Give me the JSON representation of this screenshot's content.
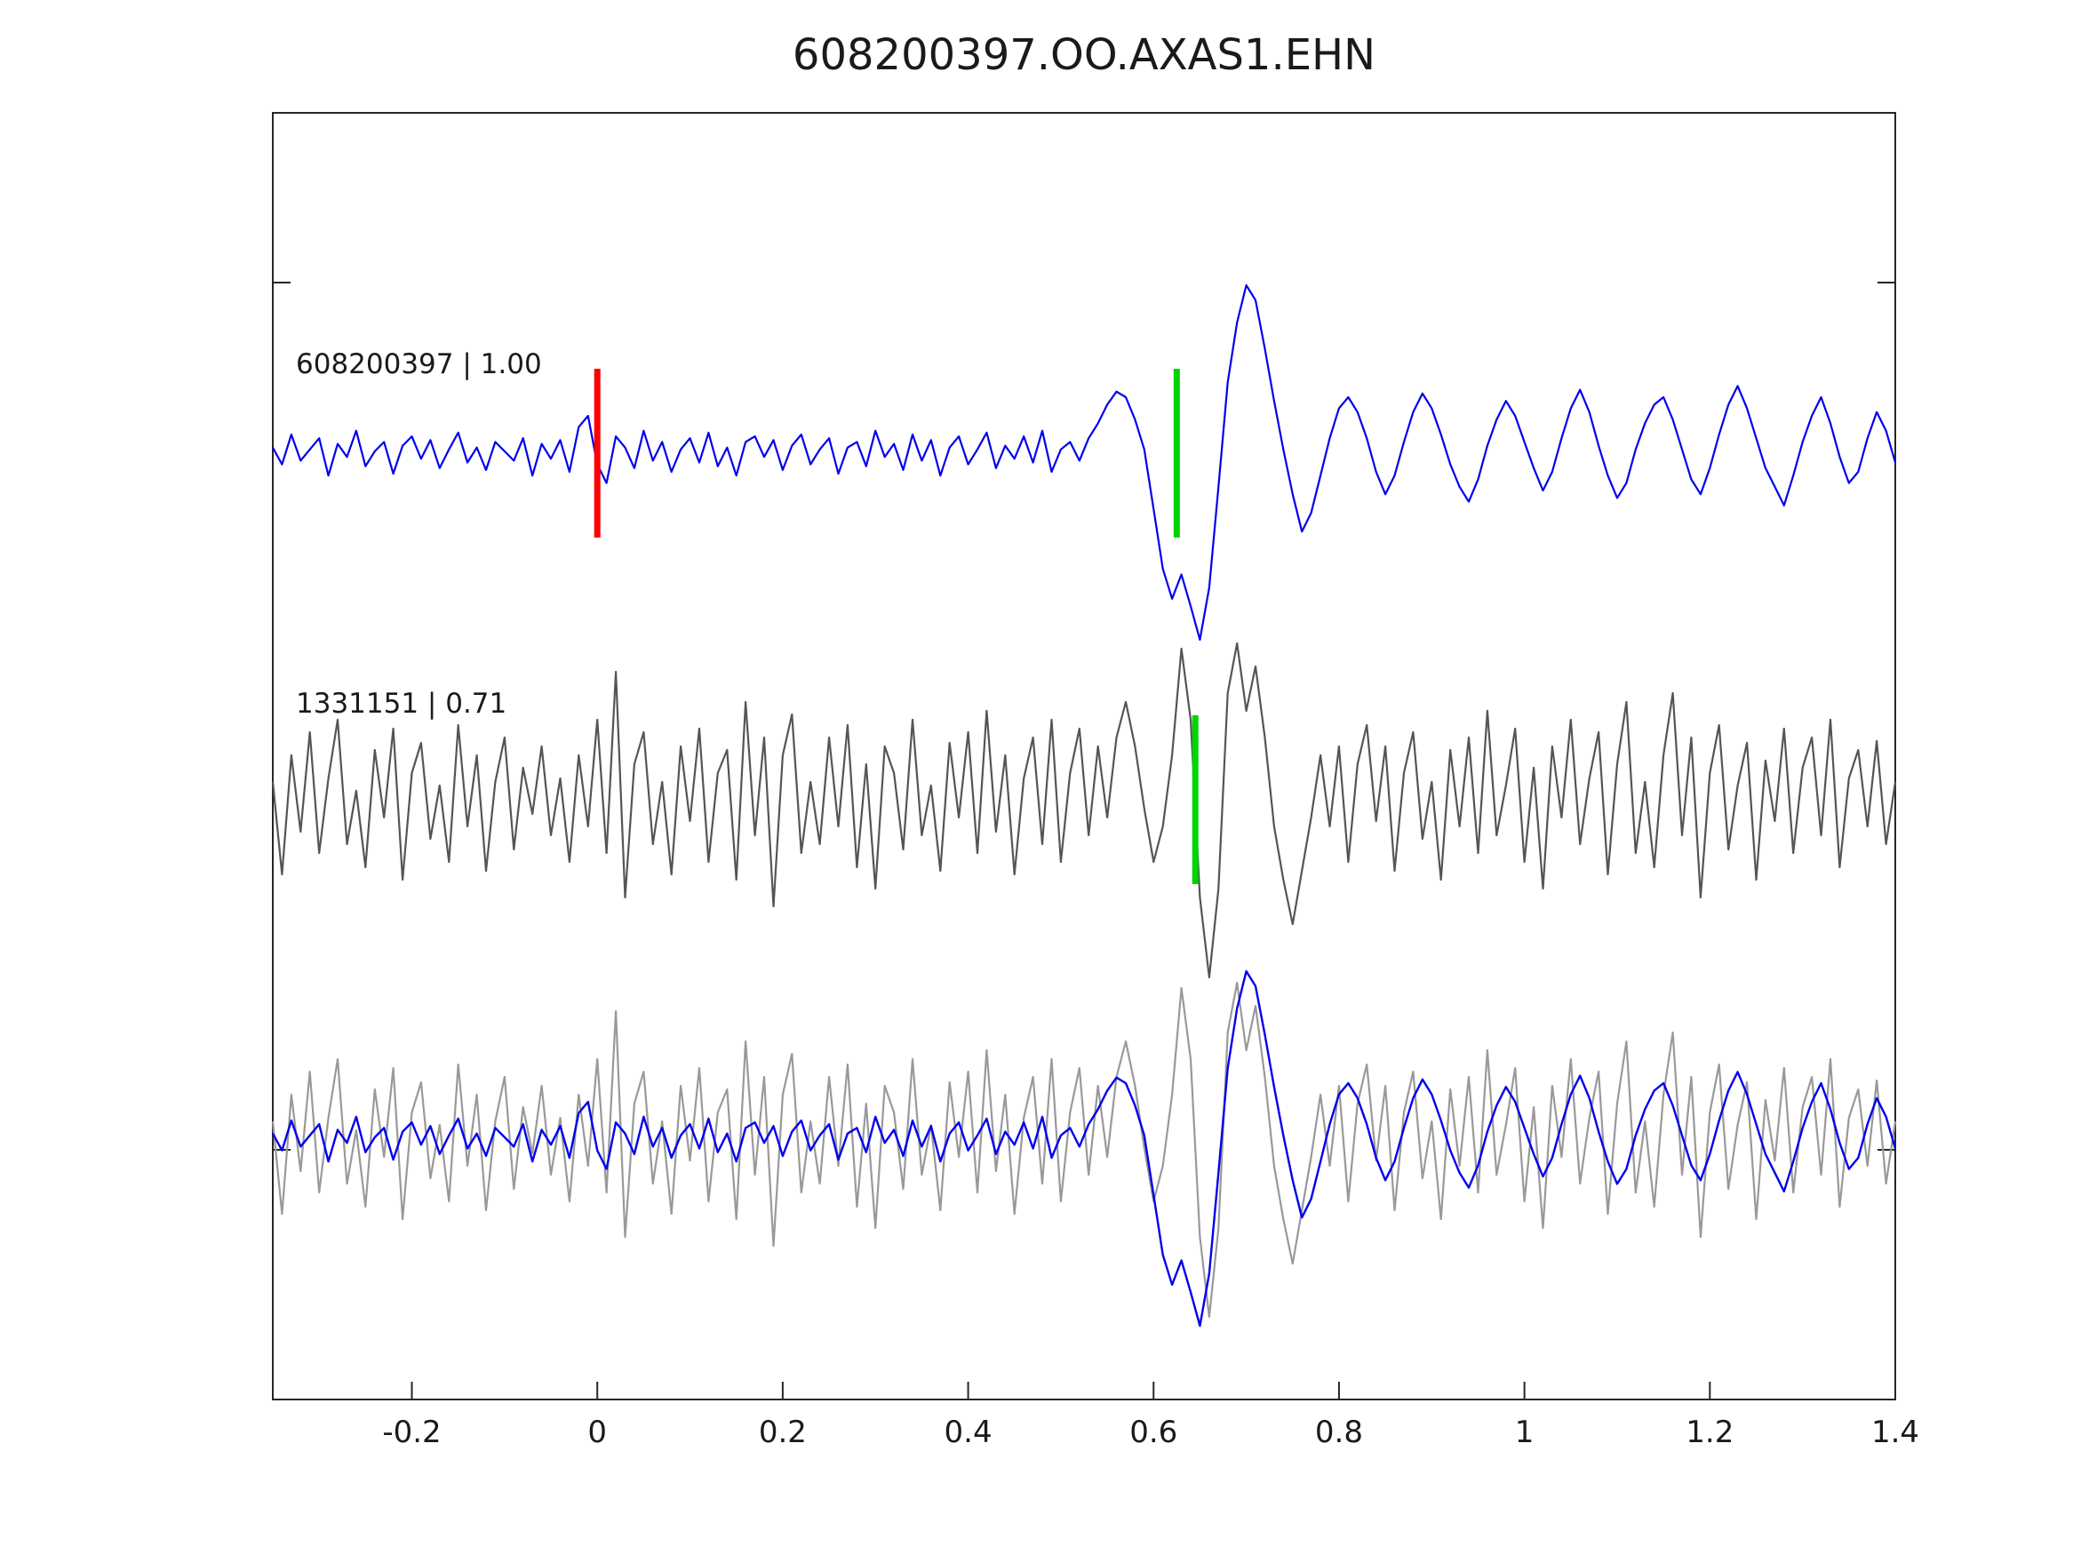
{
  "chart_data": {
    "type": "line",
    "title": "608200397.OO.AXAS1.EHN",
    "xlabel": "",
    "ylabel": "",
    "xlim": [
      -0.35,
      1.4
    ],
    "x_ticks": [
      -0.2,
      0,
      0.2,
      0.4,
      0.6,
      0.8,
      1,
      1.2,
      1.4
    ],
    "x_tick_labels": [
      "-0.2",
      "0",
      "0.2",
      "0.4",
      "0.6",
      "0.8",
      "1",
      "1.2",
      "1.4"
    ],
    "grid": false,
    "legend": "none",
    "x_start": -0.35,
    "dx": 0.01,
    "traces": [
      {
        "name": "reference",
        "label": "608200397 | 1.00",
        "id": "608200397",
        "correlation": "1.00",
        "color": "#0000ee",
        "values": [
          0.03,
          -0.06,
          0.1,
          -0.04,
          0.02,
          0.08,
          -0.12,
          0.05,
          -0.02,
          0.12,
          -0.07,
          0.01,
          0.06,
          -0.11,
          0.04,
          0.09,
          -0.03,
          0.07,
          -0.08,
          0.02,
          0.11,
          -0.05,
          0.03,
          -0.09,
          0.06,
          0.01,
          -0.04,
          0.08,
          -0.12,
          0.05,
          -0.03,
          0.07,
          -0.1,
          0.14,
          0.2,
          -0.06,
          -0.16,
          0.09,
          0.03,
          -0.08,
          0.12,
          -0.04,
          0.06,
          -0.1,
          0.02,
          0.08,
          -0.05,
          0.11,
          -0.07,
          0.03,
          -0.12,
          0.06,
          0.09,
          -0.02,
          0.07,
          -0.09,
          0.04,
          0.1,
          -0.06,
          0.02,
          0.08,
          -0.11,
          0.03,
          0.06,
          -0.07,
          0.12,
          -0.02,
          0.05,
          -0.09,
          0.1,
          -0.04,
          0.07,
          -0.12,
          0.03,
          0.09,
          -0.06,
          0.02,
          0.11,
          -0.08,
          0.04,
          -0.03,
          0.09,
          -0.05,
          0.12,
          -0.1,
          0.02,
          0.06,
          -0.04,
          0.08,
          0.16,
          0.26,
          0.33,
          0.3,
          0.18,
          0.02,
          -0.3,
          -0.62,
          -0.78,
          -0.65,
          -0.82,
          -1.0,
          -0.72,
          -0.18,
          0.38,
          0.7,
          0.9,
          0.82,
          0.56,
          0.28,
          0.02,
          -0.22,
          -0.42,
          -0.32,
          -0.12,
          0.08,
          0.24,
          0.3,
          0.22,
          0.08,
          -0.1,
          -0.22,
          -0.12,
          0.06,
          0.22,
          0.32,
          0.24,
          0.1,
          -0.06,
          -0.18,
          -0.26,
          -0.14,
          0.04,
          0.18,
          0.28,
          0.2,
          0.06,
          -0.08,
          -0.2,
          -0.1,
          0.08,
          0.24,
          0.34,
          0.22,
          0.04,
          -0.12,
          -0.24,
          -0.16,
          0.02,
          0.16,
          0.26,
          0.3,
          0.18,
          0.02,
          -0.14,
          -0.22,
          -0.08,
          0.1,
          0.26,
          0.36,
          0.24,
          0.08,
          -0.08,
          -0.18,
          -0.28,
          -0.12,
          0.06,
          0.2,
          0.3,
          0.16,
          -0.02,
          -0.16,
          -0.1,
          0.08,
          0.22,
          0.12,
          -0.05
        ]
      },
      {
        "name": "match",
        "label": "1331151 | 0.71",
        "id": "1331151",
        "correlation": "0.71",
        "color": "#555555",
        "values": [
          0.1,
          -0.42,
          0.25,
          -0.18,
          0.38,
          -0.3,
          0.12,
          0.45,
          -0.25,
          0.05,
          -0.38,
          0.28,
          -0.1,
          0.4,
          -0.45,
          0.15,
          0.32,
          -0.22,
          0.08,
          -0.35,
          0.42,
          -0.15,
          0.25,
          -0.4,
          0.1,
          0.35,
          -0.28,
          0.18,
          -0.08,
          0.3,
          -0.2,
          0.12,
          -0.35,
          0.25,
          -0.15,
          0.45,
          -0.3,
          0.72,
          -0.55,
          0.2,
          0.38,
          -0.25,
          0.1,
          -0.42,
          0.3,
          -0.12,
          0.4,
          -0.35,
          0.15,
          0.28,
          -0.45,
          0.55,
          -0.2,
          0.35,
          -0.6,
          0.25,
          0.48,
          -0.3,
          0.1,
          -0.25,
          0.35,
          -0.15,
          0.42,
          -0.38,
          0.2,
          -0.5,
          0.3,
          0.15,
          -0.28,
          0.45,
          -0.2,
          0.08,
          -0.4,
          0.32,
          -0.1,
          0.38,
          -0.3,
          0.5,
          -0.18,
          0.25,
          -0.42,
          0.12,
          0.35,
          -0.25,
          0.45,
          -0.35,
          0.15,
          0.4,
          -0.2,
          0.3,
          -0.1,
          0.35,
          0.55,
          0.3,
          -0.05,
          -0.35,
          -0.15,
          0.25,
          0.85,
          0.45,
          -0.55,
          -1.0,
          -0.5,
          0.6,
          0.88,
          0.5,
          0.75,
          0.35,
          -0.15,
          -0.45,
          -0.7,
          -0.4,
          -0.1,
          0.25,
          -0.15,
          0.3,
          -0.35,
          0.2,
          0.42,
          -0.12,
          0.3,
          -0.4,
          0.15,
          0.38,
          -0.22,
          0.1,
          -0.45,
          0.28,
          -0.15,
          0.35,
          -0.3,
          0.5,
          -0.2,
          0.08,
          0.4,
          -0.35,
          0.18,
          -0.5,
          0.3,
          -0.1,
          0.45,
          -0.25,
          0.12,
          0.38,
          -0.42,
          0.2,
          0.55,
          -0.3,
          0.1,
          -0.38,
          0.25,
          0.6,
          -0.2,
          0.35,
          -0.55,
          0.15,
          0.42,
          -0.28,
          0.08,
          0.32,
          -0.45,
          0.22,
          -0.12,
          0.4,
          -0.3,
          0.18,
          0.35,
          -0.2,
          0.45,
          -0.38,
          0.12,
          0.28,
          -0.15,
          0.33,
          -0.25,
          0.1
        ]
      }
    ],
    "overlay_row": {
      "description": "third row overlays both traces",
      "match_color": "#999999",
      "reference_color": "#0000ee"
    },
    "markers": [
      {
        "name": "reference-pick",
        "color": "#ff0000",
        "x": 0.0,
        "row": 0
      },
      {
        "name": "aligned-pick-reference",
        "color": "#00d400",
        "x": 0.625,
        "row": 0
      },
      {
        "name": "aligned-pick-match",
        "color": "#00d400",
        "x": 0.645,
        "row": 1
      }
    ]
  }
}
